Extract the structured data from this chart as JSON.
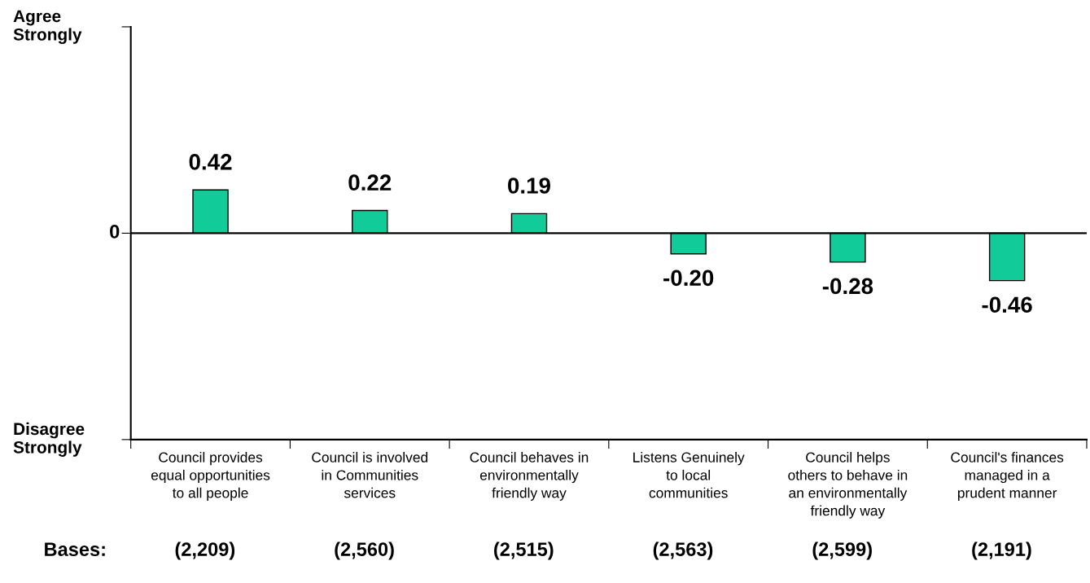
{
  "chart_data": {
    "type": "bar",
    "categories": [
      "Council provides\nequal opportunities\nto all people",
      "Council is involved\nin Communities\nservices",
      "Council behaves in\nenvironmentally\nfriendly way",
      "Listens Genuinely\nto local\ncommunities",
      "Council helps\nothers to behave in\nan environmentally\nfriendly way",
      "Council's finances\nmanaged in a\nprudent manner"
    ],
    "values": [
      0.42,
      0.22,
      0.19,
      -0.2,
      -0.28,
      -0.46
    ],
    "value_labels": [
      "0.42",
      "0.22",
      "0.19",
      "-0.20",
      "-0.28",
      "-0.46"
    ],
    "color": "#11cc99",
    "ref_lines": [
      {
        "axis": "y",
        "value": 0,
        "color": "#000000"
      }
    ],
    "annotations": [
      "Agree\nStrongly",
      "0",
      "Disagree\nStrongly",
      "Bases:",
      "(2,209)",
      "(2,560)",
      "(2,515)",
      "(2,563)",
      "(2,599)",
      "(2,191)"
    ],
    "grid": false,
    "legend": false
  }
}
